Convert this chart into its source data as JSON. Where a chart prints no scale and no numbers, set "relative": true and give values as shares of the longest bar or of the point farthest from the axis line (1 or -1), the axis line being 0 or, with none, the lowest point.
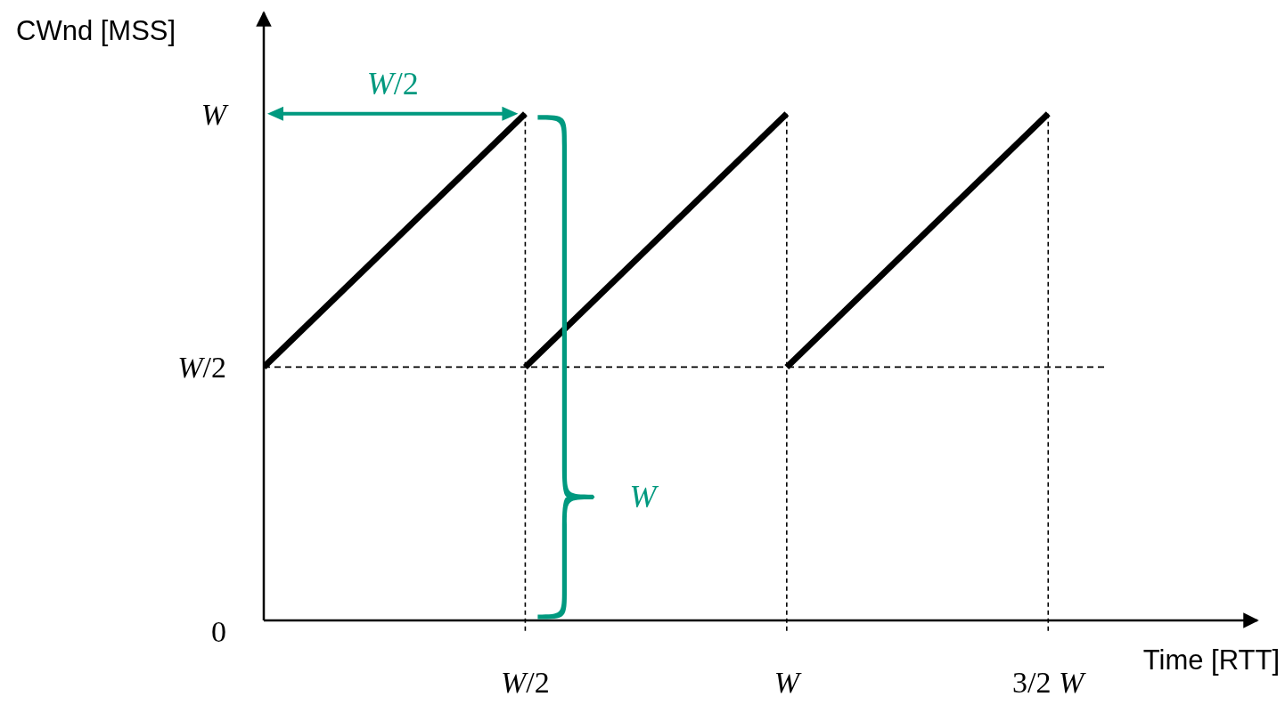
{
  "chart_data": {
    "type": "line",
    "relative": true,
    "xlabel": "Time [RTT]",
    "ylabel": "CWnd [MSS]",
    "categories": [
      null,
      "W/2",
      "W",
      "3/2 W"
    ],
    "series": [
      {
        "color": "#000000",
        "values": [
          0.5,
          1,
          null,
          null
        ]
      },
      {
        "color": "#000000",
        "values": [
          null,
          0.5,
          1,
          null
        ]
      },
      {
        "color": "#000000",
        "values": [
          null,
          null,
          0.5,
          1
        ]
      }
    ],
    "line_style": "solid",
    "grid": "x",
    "ref_lines": [
      {
        "axis": "y",
        "value": 0.5,
        "label": "W/2",
        "color": "#000000",
        "line_style": "dashed"
      }
    ],
    "annotations": [
      "W/2",
      "W",
      "W",
      "0"
    ]
  }
}
